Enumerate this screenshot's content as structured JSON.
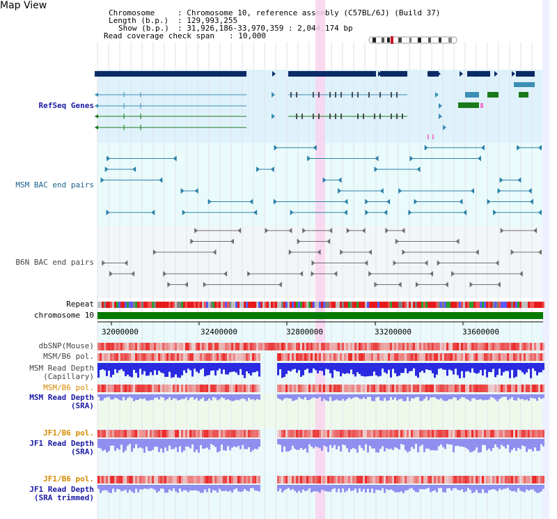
{
  "page_title": "Map View",
  "header": {
    "chromosome_label": "Chromosome",
    "chromosome_value": ": Chromosome 10, reference assembly (C57BL/6J) (Build 37)",
    "length_label": "Length (b.p.)",
    "length_value": ": 129,993,255",
    "show_label": "Show (b.p.)",
    "show_value": ": 31,926,186-33,970,359 : 2,044,174 bp",
    "coverage_label": "Read coverage check span",
    "coverage_value": ": 10,000"
  },
  "tracks": {
    "refseq": "RefSeq Genes",
    "msm_bac": "MSM BAC end pairs",
    "b6n_bac": "B6N BAC end pairs",
    "repeat": "Repeat",
    "chromosome": "chromosome 10",
    "dbsnp": "dbSNP(Mouse)",
    "msm_b6_pol_cap": "MSM/B6 pol.",
    "msm_depth_cap_1": "MSM Read Depth",
    "msm_depth_cap_2": "(Capillary)",
    "msm_b6_pol_sra": "MSM/B6 pol.",
    "msm_depth_sra_1": "MSM Read Depth",
    "msm_depth_sra_2": "(SRA)",
    "jf1_b6_pol": "JF1/B6 pol.",
    "jf1_depth_1": "JF1 Read Depth",
    "jf1_depth_2": "(SRA)",
    "jf1_b6_pol_trim": "JF1/B6 pol.",
    "jf1_depth_trim_1": "JF1 Read Depth",
    "jf1_depth_trim_2": "(SRA trimmed)"
  },
  "axis_ticks": [
    "32000000",
    "32400000",
    "32800000",
    "33200000",
    "33600000"
  ],
  "colors": {
    "refseq_bg": "#dff2fb",
    "bac_bg": "#e9fbfb",
    "b6n_bg": "#f3f6f9",
    "highlight": "#f9d4ee",
    "gene_dark": "#0b2b66",
    "gene_teal": "#3a8fb5",
    "gene_green": "#1a7a1a",
    "chromosome_bar": "#007a00",
    "label_blue": "#1a1aa6",
    "label_teal": "#1a5f8a",
    "label_orange": "#d68a00",
    "depth_blue": "#2a2ae0",
    "depth_light": "#8f8ff0"
  }
}
